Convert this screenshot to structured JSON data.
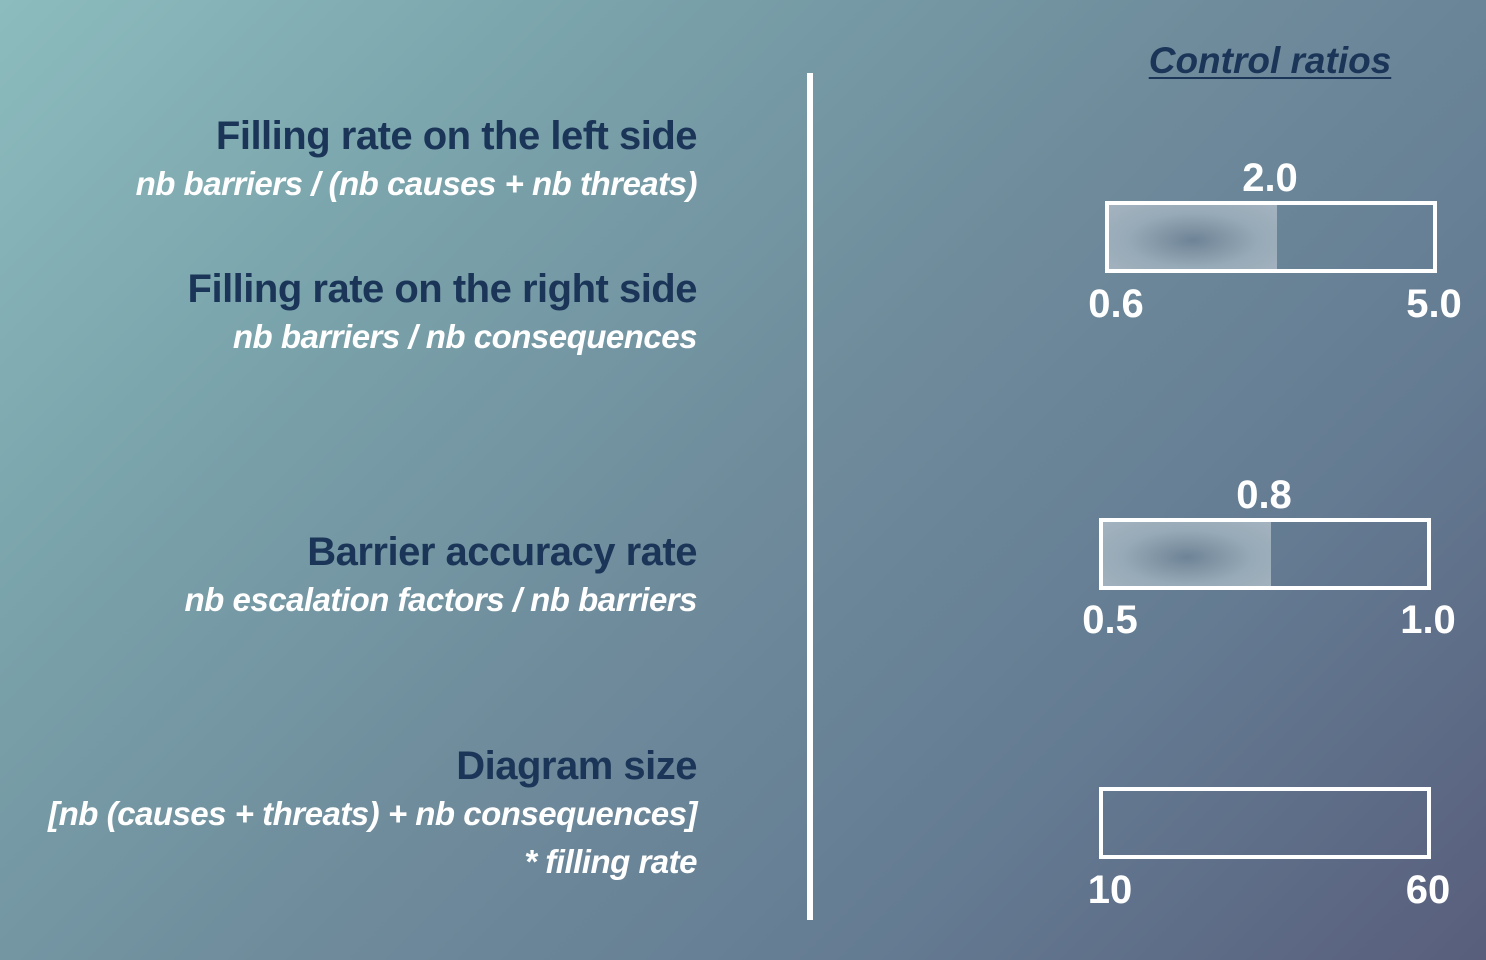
{
  "metrics": [
    {
      "title": "Filling rate on the left side",
      "sub": "nb barriers / (nb causes + nb threats)"
    },
    {
      "title": "Filling rate on the right side",
      "sub": "nb barriers / nb consequences"
    },
    {
      "title": "Barrier accuracy rate",
      "sub": "nb escalation factors / nb barriers"
    },
    {
      "title": "Diagram size",
      "sub1": "[nb (causes + threats) + nb consequences]",
      "sub2": "*  filling rate"
    }
  ],
  "control_title": "Control ratios",
  "gauges": [
    {
      "value": "2.0",
      "min": "0.6",
      "max": "5.0",
      "fill_fraction": 0.52
    },
    {
      "value": "0.8",
      "min": "0.5",
      "max": "1.0",
      "fill_fraction": 0.52
    },
    {
      "min": "10",
      "max": "60",
      "fill_fraction": 0
    }
  ]
}
